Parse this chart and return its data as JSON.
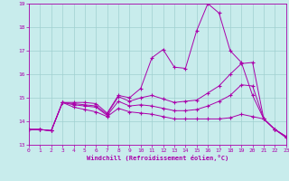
{
  "xlabel": "Windchill (Refroidissement éolien,°C)",
  "xlim": [
    0,
    23
  ],
  "ylim": [
    13,
    19
  ],
  "xticks": [
    0,
    1,
    2,
    3,
    4,
    5,
    6,
    7,
    8,
    9,
    10,
    11,
    12,
    13,
    14,
    15,
    16,
    17,
    18,
    19,
    20,
    21,
    22,
    23
  ],
  "yticks": [
    13,
    14,
    15,
    16,
    17,
    18,
    19
  ],
  "bg_color": "#c8ecec",
  "grid_color": "#a0d0d0",
  "line_color": "#aa00aa",
  "curve1_y": [
    13.65,
    13.65,
    13.6,
    14.8,
    14.8,
    14.8,
    14.75,
    14.35,
    15.1,
    15.0,
    15.4,
    16.7,
    17.05,
    16.3,
    16.25,
    17.85,
    19.0,
    18.6,
    17.0,
    16.5,
    15.1,
    14.1,
    13.65,
    13.35
  ],
  "curve2_y": [
    13.65,
    13.65,
    13.6,
    14.8,
    14.75,
    14.7,
    14.65,
    14.3,
    15.05,
    14.85,
    15.0,
    15.1,
    14.95,
    14.8,
    14.85,
    14.9,
    15.2,
    15.5,
    16.0,
    16.45,
    16.5,
    14.1,
    13.65,
    13.35
  ],
  "curve3_y": [
    13.65,
    13.65,
    13.6,
    14.8,
    14.7,
    14.65,
    14.6,
    14.25,
    14.85,
    14.65,
    14.7,
    14.65,
    14.55,
    14.45,
    14.45,
    14.5,
    14.65,
    14.85,
    15.1,
    15.55,
    15.5,
    14.1,
    13.65,
    13.35
  ],
  "curve4_y": [
    13.65,
    13.65,
    13.6,
    14.8,
    14.6,
    14.5,
    14.4,
    14.2,
    14.55,
    14.4,
    14.35,
    14.3,
    14.2,
    14.1,
    14.1,
    14.1,
    14.1,
    14.1,
    14.15,
    14.3,
    14.2,
    14.1,
    13.65,
    13.3
  ]
}
